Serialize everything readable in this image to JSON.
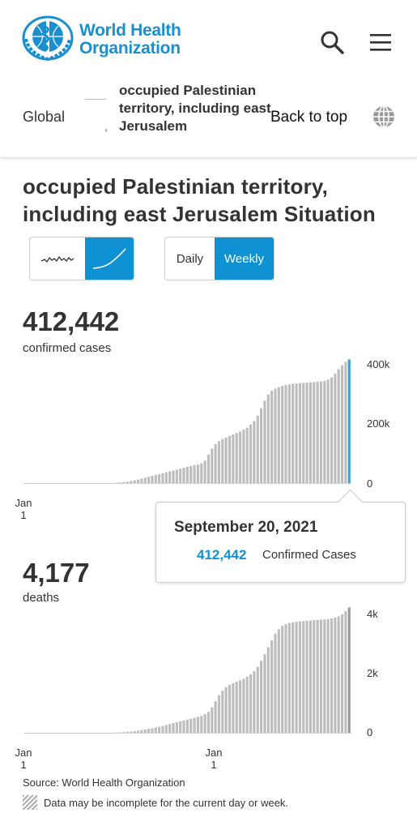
{
  "header": {
    "logo_line1": "World Health",
    "logo_line2": "Organization",
    "search_icon": "search-icon",
    "menu_icon": "hamburger-menu-icon"
  },
  "breadcrumb": {
    "global": "Global",
    "separator": ",",
    "country": "occupied Palestinian territory, including east Jerusalem",
    "back_to_top": "Back to top",
    "globe_icon": "globe-icon"
  },
  "title": "occupied Palestinian territory, including east Jerusalem Situation",
  "toggles": {
    "chart_type": [
      "daily-trend-icon",
      "cumulative-trend-icon"
    ],
    "chart_type_selected": 1,
    "period": [
      "Daily",
      "Weekly"
    ],
    "period_selected": 1
  },
  "cases": {
    "total": "412,442",
    "label": "confirmed cases",
    "y_ticks": [
      "400k",
      "200k",
      "0"
    ],
    "x_ticks": [
      {
        "line1": "Jan",
        "line2": "1"
      }
    ]
  },
  "tooltip": {
    "date": "September 20, 2021",
    "value": "412,442",
    "label": "Confirmed Cases"
  },
  "deaths": {
    "total": "4,177",
    "label": "deaths",
    "y_ticks": [
      "4k",
      "2k",
      "0"
    ],
    "x_ticks": [
      {
        "line1": "Jan",
        "line2": "1"
      },
      {
        "line1": "Jan",
        "line2": "1"
      }
    ]
  },
  "footer": {
    "source": "Source: World Health Organization",
    "note": "Data may be incomplete for the current day or week."
  },
  "colors": {
    "brand": "#1a8fd0",
    "accent": "#0e92d3",
    "bar": "#bdbdbd",
    "text": "#333333"
  },
  "chart_data": [
    {
      "type": "bar",
      "title": "confirmed cases",
      "ylim": [
        0,
        400000
      ],
      "x_start": "2020-01-01",
      "x_interval": "weekly",
      "y_ticks": [
        "400k",
        "200k",
        "0"
      ],
      "values": [
        0,
        0,
        0,
        0,
        0,
        0,
        0,
        0,
        0,
        0,
        0,
        0,
        0,
        0,
        0,
        0,
        0,
        0,
        0,
        0,
        0,
        0,
        0,
        0,
        0,
        0,
        1000,
        2000,
        3500,
        5000,
        7000,
        9500,
        12000,
        15000,
        18000,
        21000,
        24000,
        27000,
        30000,
        33000,
        36000,
        39000,
        42000,
        45000,
        48000,
        51000,
        54000,
        57000,
        60000,
        62000,
        66000,
        75000,
        95000,
        115000,
        130000,
        140000,
        147000,
        152000,
        157000,
        162000,
        167000,
        172000,
        178000,
        185000,
        195000,
        207000,
        225000,
        250000,
        275000,
        295000,
        308000,
        315000,
        320000,
        324000,
        327000,
        329000,
        331000,
        332000,
        333000,
        334000,
        335000,
        336000,
        337000,
        338000,
        339000,
        341000,
        345000,
        352000,
        365000,
        380000,
        393000,
        404000,
        412442
      ],
      "highlighted_last": true
    },
    {
      "type": "bar",
      "title": "deaths",
      "ylim": [
        0,
        4000
      ],
      "x_start": "2020-01-01",
      "x_interval": "weekly",
      "y_ticks": [
        "4k",
        "2k",
        "0"
      ],
      "values": [
        0,
        0,
        0,
        0,
        0,
        0,
        0,
        0,
        0,
        0,
        0,
        0,
        0,
        0,
        0,
        0,
        0,
        0,
        0,
        0,
        0,
        0,
        0,
        0,
        0,
        0,
        5,
        10,
        20,
        30,
        40,
        55,
        70,
        90,
        110,
        130,
        150,
        175,
        200,
        230,
        260,
        290,
        320,
        350,
        380,
        410,
        440,
        470,
        500,
        530,
        560,
        620,
        700,
        850,
        1050,
        1250,
        1400,
        1520,
        1600,
        1650,
        1700,
        1750,
        1800,
        1870,
        1950,
        2050,
        2200,
        2400,
        2620,
        2850,
        3080,
        3300,
        3450,
        3560,
        3620,
        3660,
        3680,
        3700,
        3710,
        3720,
        3730,
        3740,
        3750,
        3760,
        3770,
        3780,
        3790,
        3810,
        3840,
        3880,
        3950,
        4050,
        4177
      ],
      "highlighted_last": true
    }
  ]
}
